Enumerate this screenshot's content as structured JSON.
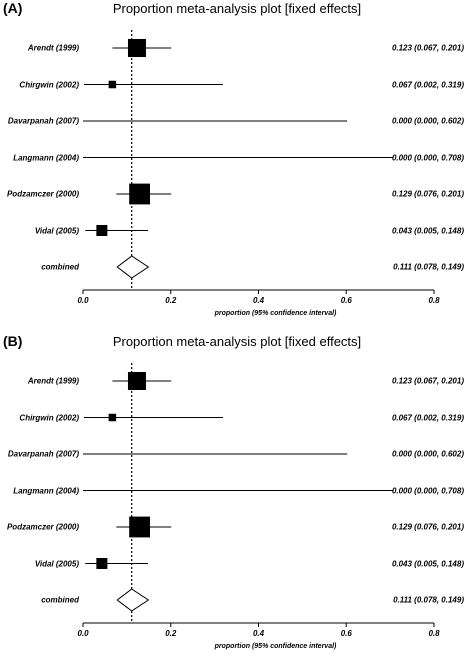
{
  "chart_data": [
    {
      "type": "forest",
      "panel_label": "(A)",
      "title": "Proportion meta-analysis plot [fixed effects]",
      "xlabel": "proportion (95% confidence interval)",
      "xlim": [
        0,
        0.8
      ],
      "xticks": [
        "0.0",
        "0.2",
        "0.4",
        "0.6",
        "0.8"
      ],
      "reference_line": 0.111,
      "studies": [
        {
          "label": "Arendt (1999)",
          "estimate": 0.123,
          "lower": 0.067,
          "upper": 0.201,
          "ci_text": "0.123 (0.067, 0.201)",
          "weight": 1.0
        },
        {
          "label": "Chirgwin (2002)",
          "estimate": 0.067,
          "lower": 0.002,
          "upper": 0.319,
          "ci_text": "0.067 (0.002, 0.319)",
          "weight": 0.25
        },
        {
          "label": "Davarpanah (2007)",
          "estimate": 0.0,
          "lower": 0.0,
          "upper": 0.602,
          "ci_text": "0.000 (0.000, 0.602)",
          "weight": 0.0
        },
        {
          "label": "Langmann (2004)",
          "estimate": 0.0,
          "lower": 0.0,
          "upper": 0.708,
          "ci_text": "0.000 (0.000, 0.708)",
          "weight": 0.0
        },
        {
          "label": "Podzamczer (2000)",
          "estimate": 0.129,
          "lower": 0.076,
          "upper": 0.201,
          "ci_text": "0.129 (0.076, 0.201)",
          "weight": 1.2
        },
        {
          "label": "Vidal (2005)",
          "estimate": 0.043,
          "lower": 0.005,
          "upper": 0.148,
          "ci_text": "0.043 (0.005, 0.148)",
          "weight": 0.5
        }
      ],
      "combined": {
        "label": "combined",
        "estimate": 0.111,
        "lower": 0.078,
        "upper": 0.149,
        "ci_text": "0.111 (0.078, 0.149)"
      }
    },
    {
      "type": "forest",
      "panel_label": "(B)",
      "title": "Proportion meta-analysis plot [fixed effects]",
      "xlabel": "proportion (95% confidence interval)",
      "xlim": [
        0,
        0.8
      ],
      "xticks": [
        "0.0",
        "0.2",
        "0.4",
        "0.6",
        "0.8"
      ],
      "reference_line": 0.111,
      "studies": [
        {
          "label": "Arendt (1999)",
          "estimate": 0.123,
          "lower": 0.067,
          "upper": 0.201,
          "ci_text": "0.123 (0.067, 0.201)",
          "weight": 1.0
        },
        {
          "label": "Chirgwin (2002)",
          "estimate": 0.067,
          "lower": 0.002,
          "upper": 0.319,
          "ci_text": "0.067 (0.002, 0.319)",
          "weight": 0.25
        },
        {
          "label": "Davarpanah (2007)",
          "estimate": 0.0,
          "lower": 0.0,
          "upper": 0.602,
          "ci_text": "0.000 (0.000, 0.602)",
          "weight": 0.0
        },
        {
          "label": "Langmann (2004)",
          "estimate": 0.0,
          "lower": 0.0,
          "upper": 0.708,
          "ci_text": "0.000 (0.000, 0.708)",
          "weight": 0.0
        },
        {
          "label": "Podzamczer (2000)",
          "estimate": 0.129,
          "lower": 0.076,
          "upper": 0.201,
          "ci_text": "0.129 (0.076, 0.201)",
          "weight": 1.2
        },
        {
          "label": "Vidal (2005)",
          "estimate": 0.043,
          "lower": 0.005,
          "upper": 0.148,
          "ci_text": "0.043 (0.005, 0.148)",
          "weight": 0.5
        }
      ],
      "combined": {
        "label": "combined",
        "estimate": 0.111,
        "lower": 0.078,
        "upper": 0.149,
        "ci_text": "0.111 (0.078, 0.149)"
      }
    }
  ]
}
